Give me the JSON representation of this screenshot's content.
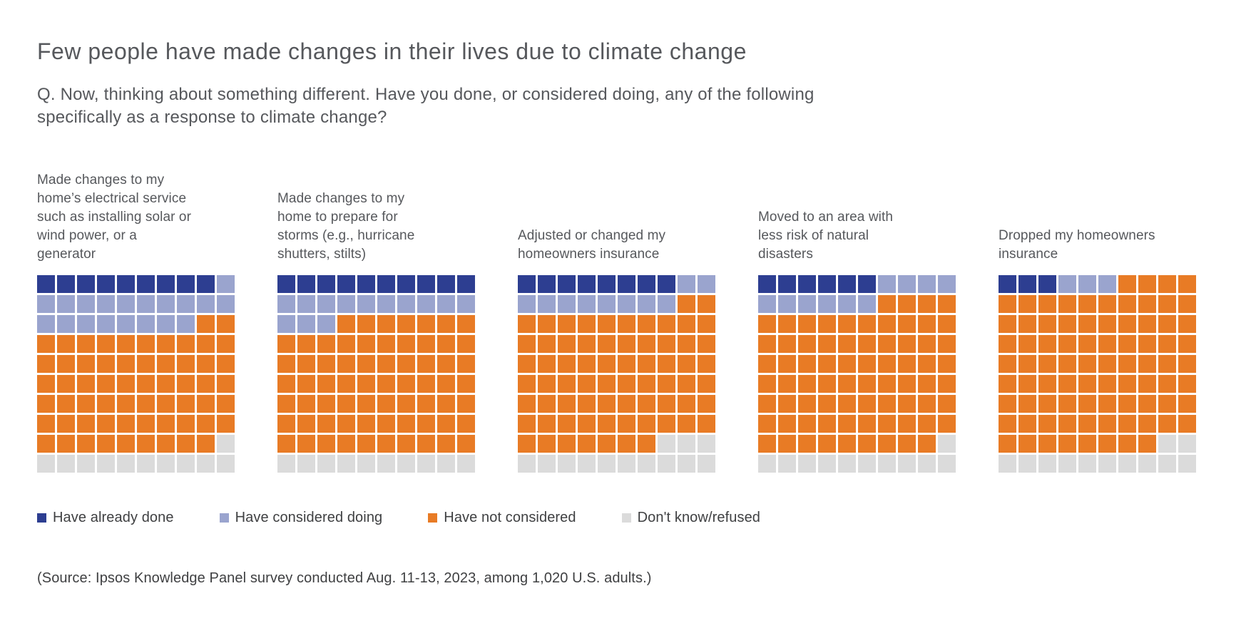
{
  "title": "Few people have made changes in their lives due to climate change",
  "subtitle": "Q. Now, thinking about something different. Have you done, or considered doing, any of the following\nspecifically as a response to climate change?",
  "source": "(Source: Ipsos Knowledge Panel survey conducted Aug. 11-13, 2023, among 1,020 U.S. adults.)",
  "colors": {
    "have_already_done": "#2d3e91",
    "have_considered_doing": "#9aa4ce",
    "have_not_considered": "#e87b25",
    "dont_know_refused": "#dbdbdb",
    "text_primary": "#56585c",
    "text_secondary": "#3f4042",
    "background": "#ffffff"
  },
  "chart_data": {
    "type": "waffle",
    "grid": {
      "rows": 10,
      "cols": 10,
      "fill_order": "row-major-top-left"
    },
    "categories": [
      "Have already done",
      "Have considered doing",
      "Have not considered",
      "Don't know/refused"
    ],
    "category_colors": [
      "#2d3e91",
      "#9aa4ce",
      "#e87b25",
      "#dbdbdb"
    ],
    "legend_position": "bottom",
    "units": "percent of U.S. adults",
    "questions": [
      {
        "label": "Made changes to my\nhome’s electrical service\nsuch as installing solar or\nwind power, or a\ngenerator",
        "values": [
          9,
          19,
          61,
          11
        ]
      },
      {
        "label": "Made changes to my\nhome to prepare for\nstorms (e.g., hurricane\nshutters, stilts)",
        "values": [
          10,
          13,
          67,
          10
        ]
      },
      {
        "label": "Adjusted or changed my\nhomeowners insurance",
        "values": [
          8,
          10,
          69,
          13
        ]
      },
      {
        "label": "Moved to an area with\nless risk of natural\ndisasters",
        "values": [
          6,
          10,
          73,
          11
        ]
      },
      {
        "label": "Dropped my homeowners\ninsurance",
        "values": [
          3,
          3,
          82,
          12
        ]
      }
    ]
  }
}
